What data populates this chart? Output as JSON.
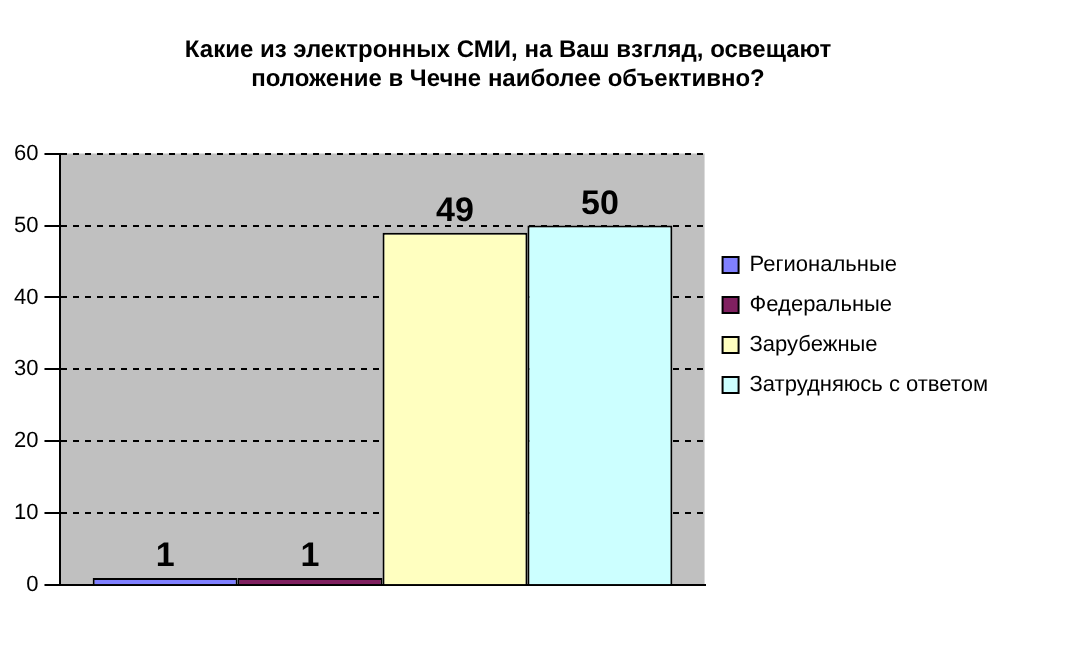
{
  "chart_data": {
    "type": "bar",
    "title": "Какие из электронных СМИ, на Ваш взгляд, освещают\nположение в Чечне наиболее объективно?",
    "categories": [
      null
    ],
    "series": [
      {
        "name": "Региональные",
        "color": "#8080ff",
        "values": [
          1
        ]
      },
      {
        "name": "Федеральные",
        "color": "#802060",
        "values": [
          1
        ]
      },
      {
        "name": "Зарубежные",
        "color": "#ffffc0",
        "values": [
          49
        ]
      },
      {
        "name": "Затрудняюсь с ответом",
        "color": "#ccffff",
        "values": [
          50
        ]
      }
    ],
    "ylim": [
      0,
      60
    ],
    "yticks": [
      0,
      10,
      20,
      30,
      40,
      50,
      60
    ],
    "grid": "y",
    "legend": "right",
    "data_labels": true
  }
}
